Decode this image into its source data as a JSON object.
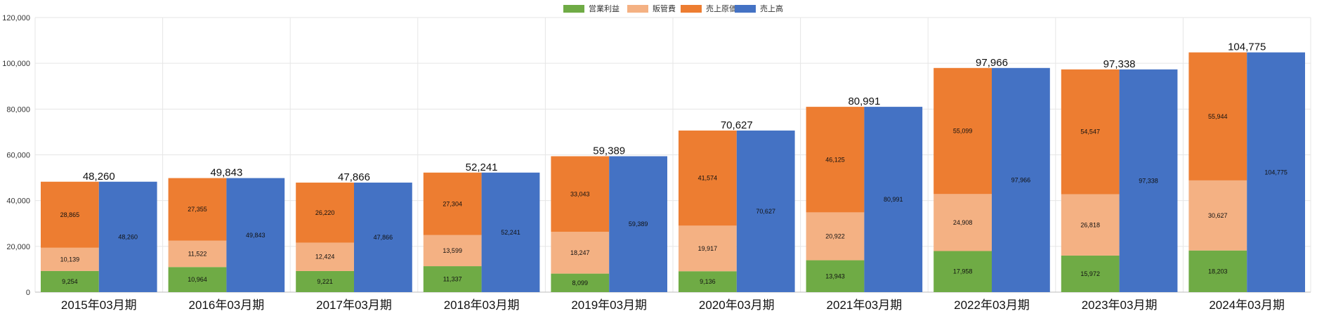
{
  "chart_data": {
    "type": "bar",
    "title": "",
    "xlabel": "",
    "ylabel": "",
    "ylim": [
      0,
      120000
    ],
    "yticks": [
      "0",
      "20,000",
      "40,000",
      "60,000",
      "80,000",
      "100,000",
      "120,000"
    ],
    "grid": true,
    "legend_position": "top-center",
    "categories": [
      "2015年03月期",
      "2016年03月期",
      "2017年03月期",
      "2018年03月期",
      "2019年03月期",
      "2020年03月期",
      "2021年03月期",
      "2022年03月期",
      "2023年03月期",
      "2024年03月期"
    ],
    "stacked_series": [
      {
        "name": "営業利益",
        "color": "#6fab45",
        "values": [
          9254,
          10964,
          9221,
          11337,
          8099,
          9136,
          13943,
          17958,
          15972,
          18203
        ],
        "labels": [
          "9,254",
          "10,964",
          "9,221",
          "11,337",
          "8,099",
          "9,136",
          "13,943",
          "17,958",
          "15,972",
          "18,203"
        ]
      },
      {
        "name": "販管費",
        "color": "#f4b183",
        "values": [
          10139,
          11522,
          12424,
          13599,
          18247,
          19917,
          20922,
          24908,
          26818,
          30627
        ],
        "labels": [
          "10,139",
          "11,522",
          "12,424",
          "13,599",
          "18,247",
          "19,917",
          "20,922",
          "24,908",
          "26,818",
          "30,627"
        ]
      },
      {
        "name": "売上原価",
        "color": "#ed7d31",
        "values": [
          28865,
          27355,
          26220,
          27304,
          33043,
          41574,
          46125,
          55099,
          54547,
          55944
        ],
        "labels": [
          "28,865",
          "27,355",
          "26,220",
          "27,304",
          "33,043",
          "41,574",
          "46,125",
          "55,099",
          "54,547",
          "55,944"
        ]
      }
    ],
    "total_series": {
      "name": "売上高",
      "color": "#4472c4",
      "values": [
        48260,
        49843,
        47866,
        52241,
        59389,
        70627,
        80991,
        97966,
        97338,
        104775
      ],
      "labels": [
        "48,260",
        "49,843",
        "47,866",
        "52,241",
        "59,389",
        "70,627",
        "80,991",
        "97,966",
        "97,338",
        "104,775"
      ]
    },
    "stack_total_labels": [
      "48,260",
      "49,843",
      "47,866",
      "52,241",
      "59,389",
      "70,627",
      "80,991",
      "97,966",
      "97,338",
      "104,775"
    ],
    "legend": [
      {
        "name": "営業利益",
        "color": "#6fab45"
      },
      {
        "name": "販管費",
        "color": "#f4b183"
      },
      {
        "name": "売上原価",
        "color": "#ed7d31"
      },
      {
        "name": "売上高",
        "color": "#4472c4"
      }
    ]
  }
}
